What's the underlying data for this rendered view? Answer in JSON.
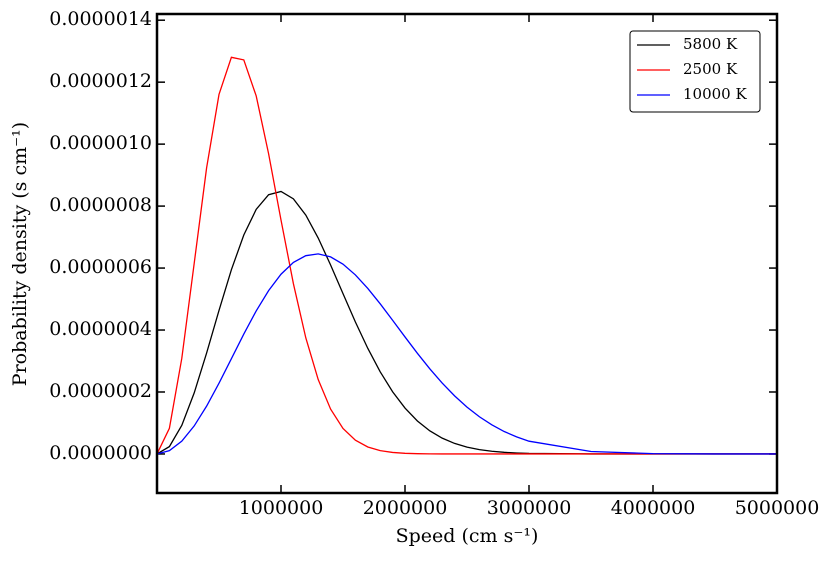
{
  "chart_data": {
    "type": "line",
    "x_label": "Speed (cm s⁻¹)",
    "y_label": "Probability density (s cm⁻¹)",
    "x": [
      0,
      100000,
      200000,
      300000,
      400000,
      500000,
      600000,
      700000,
      800000,
      900000,
      1000000,
      1100000,
      1200000,
      1300000,
      1400000,
      1500000,
      1600000,
      1700000,
      1800000,
      1900000,
      2000000,
      2100000,
      2200000,
      2300000,
      2400000,
      2500000,
      2600000,
      2700000,
      2800000,
      2900000,
      3000000,
      3500000,
      4000000,
      4500000,
      5000000
    ],
    "series": [
      {
        "name": "5800 K",
        "color": "#000000",
        "values": [
          0,
          2.38e-08,
          9.228e-08,
          1.971e-07,
          3.257e-07,
          4.633e-07,
          5.947e-07,
          7.068e-07,
          7.894e-07,
          8.367e-07,
          8.473e-07,
          8.235e-07,
          7.709e-07,
          6.97e-07,
          6.099e-07,
          5.174e-07,
          4.26e-07,
          3.409e-07,
          2.652e-07,
          2.008e-07,
          1.481e-07,
          1.065e-07,
          7.46e-08,
          5.099e-08,
          3.401e-08,
          2.214e-08,
          1.406e-08,
          8.71e-09,
          5.28e-09,
          3.11e-09,
          1.81e-09,
          8.3e-11,
          0,
          0,
          0
        ]
      },
      {
        "name": "2500 K",
        "color": "#ff0000",
        "values": [
          0,
          8.298e-08,
          3.087e-07,
          6.153e-07,
          9.233e-07,
          1.1603e-06,
          1.2802e-06,
          1.2719e-06,
          1.1555e-06,
          9.69e-07,
          7.552e-07,
          5.496e-07,
          3.748e-07,
          2.402e-07,
          1.449e-07,
          8.24e-08,
          4.427e-08,
          2.248e-08,
          1.08e-08,
          4.91e-09,
          2.12e-09,
          8.7e-10,
          3.4e-10,
          1.2e-10,
          0,
          0,
          0,
          0,
          0,
          0,
          0,
          0,
          0,
          0,
          0
        ]
      },
      {
        "name": "10000 K",
        "color": "#0000ff",
        "values": [
          0,
          1.056e-08,
          4.148e-08,
          9.055e-08,
          1.543e-07,
          2.283e-07,
          3.076e-07,
          3.87e-07,
          4.616e-07,
          5.271e-07,
          5.801e-07,
          6.181e-07,
          6.4e-07,
          6.457e-07,
          6.36e-07,
          6.126e-07,
          5.778e-07,
          5.341e-07,
          4.846e-07,
          4.315e-07,
          3.777e-07,
          3.249e-07,
          2.748e-07,
          2.288e-07,
          1.875e-07,
          1.513e-07,
          1.201e-07,
          9.401e-08,
          7.247e-08,
          5.507e-08,
          4.123e-08,
          7.86e-09,
          1.06e-09,
          1e-10,
          0
        ]
      }
    ],
    "xlim": [
      0,
      5000000
    ],
    "xticks": [
      1000000,
      2000000,
      3000000,
      4000000,
      5000000
    ],
    "ylim": [
      -1.26e-07,
      1.42e-06
    ],
    "yticks": [
      {
        "value": 0,
        "label": "0.0000000"
      },
      {
        "value": 2e-07,
        "label": "0.0000002"
      },
      {
        "value": 4e-07,
        "label": "0.0000004"
      },
      {
        "value": 6e-07,
        "label": "0.0000006"
      },
      {
        "value": 8e-07,
        "label": "0.0000008"
      },
      {
        "value": 1e-06,
        "label": "0.0000010"
      },
      {
        "value": 1.2e-06,
        "label": "0.0000012"
      },
      {
        "value": 1.4e-06,
        "label": "0.0000014"
      }
    ],
    "legend": "upper right"
  }
}
